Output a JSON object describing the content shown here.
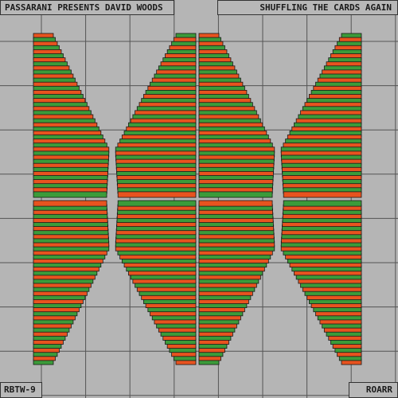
{
  "header": {
    "artist": "PASSARANI PRESENTS DAVID WOODS",
    "title": "SHUFFLING THE CARDS AGAIN"
  },
  "footer": {
    "catalog": "RBTW-9",
    "label": "ROARR"
  }
}
